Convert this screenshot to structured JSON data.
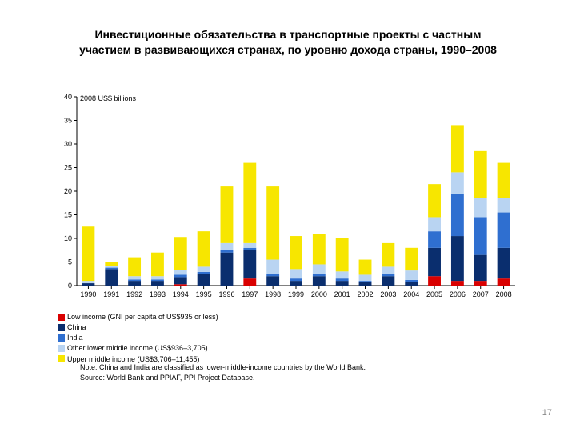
{
  "page_number": "17",
  "title_line1": "Инвестиционные обязательства в транспортные проекты  с частным",
  "title_line2": "участием в развивающихся странах, по уровню дохода страны, 1990–2008",
  "chart": {
    "type": "stacked-bar",
    "subtitle": "2008 US$ billions",
    "ylabel": "",
    "ylim": [
      0,
      40
    ],
    "ytick_step": 5,
    "yticks": [
      0,
      5,
      10,
      15,
      20,
      25,
      30,
      35,
      40
    ],
    "axis_color": "#000000",
    "tick_font_size": 9,
    "background_color": "#ffffff",
    "grid": false,
    "bar_width": 0.55,
    "categories": [
      "1990",
      "1991",
      "1992",
      "1993",
      "1994",
      "1995",
      "1996",
      "1997",
      "1998",
      "1999",
      "2000",
      "2001",
      "2002",
      "2003",
      "2004",
      "2005",
      "2006",
      "2007",
      "2008"
    ],
    "series_order": [
      "low",
      "china",
      "india",
      "other_lmi",
      "umi"
    ],
    "series": {
      "low": {
        "label": "Low income (GNI per capita of US$935 or less)",
        "color": "#d90000"
      },
      "china": {
        "label": "China",
        "color": "#0a2e6e"
      },
      "india": {
        "label": "India",
        "color": "#2f6fd0"
      },
      "other_lmi": {
        "label": "Other lower middle income (US$936–3,705)",
        "color": "#b9d4f2"
      },
      "umi": {
        "label": "Upper middle income (US$3,706–11,455)",
        "color": "#f7e600"
      }
    },
    "data": {
      "low": [
        0.0,
        0.0,
        0.0,
        0.0,
        0.3,
        0.0,
        0.0,
        1.5,
        0.0,
        0.0,
        0.0,
        0.0,
        0.0,
        0.0,
        0.0,
        2.0,
        1.0,
        1.0,
        1.5
      ],
      "china": [
        0.5,
        3.5,
        1.0,
        1.0,
        1.5,
        2.5,
        7.0,
        6.0,
        2.0,
        1.0,
        2.0,
        1.0,
        0.7,
        2.0,
        0.7,
        6.0,
        9.5,
        5.5,
        6.5
      ],
      "india": [
        0.0,
        0.3,
        0.3,
        0.3,
        0.5,
        0.4,
        0.5,
        0.5,
        0.5,
        0.5,
        0.5,
        0.5,
        0.3,
        0.5,
        0.5,
        3.5,
        9.0,
        8.0,
        7.5
      ],
      "other_lmi": [
        0.5,
        0.4,
        0.7,
        0.7,
        1.0,
        1.1,
        1.5,
        1.0,
        3.0,
        2.0,
        2.0,
        1.5,
        1.3,
        1.5,
        2.0,
        3.0,
        4.5,
        4.0,
        3.0
      ],
      "umi": [
        11.5,
        0.8,
        4.0,
        5.0,
        7.0,
        7.5,
        12.0,
        17.0,
        15.5,
        7.0,
        6.5,
        7.0,
        3.2,
        5.0,
        4.8,
        7.0,
        10.0,
        10.0,
        7.5
      ]
    }
  },
  "notes": {
    "note1": "Note: China and India are classified as lower-middle-income countries by the World Bank.",
    "note2": "Source: World Bank and PPIAF, PPI Project Database."
  }
}
